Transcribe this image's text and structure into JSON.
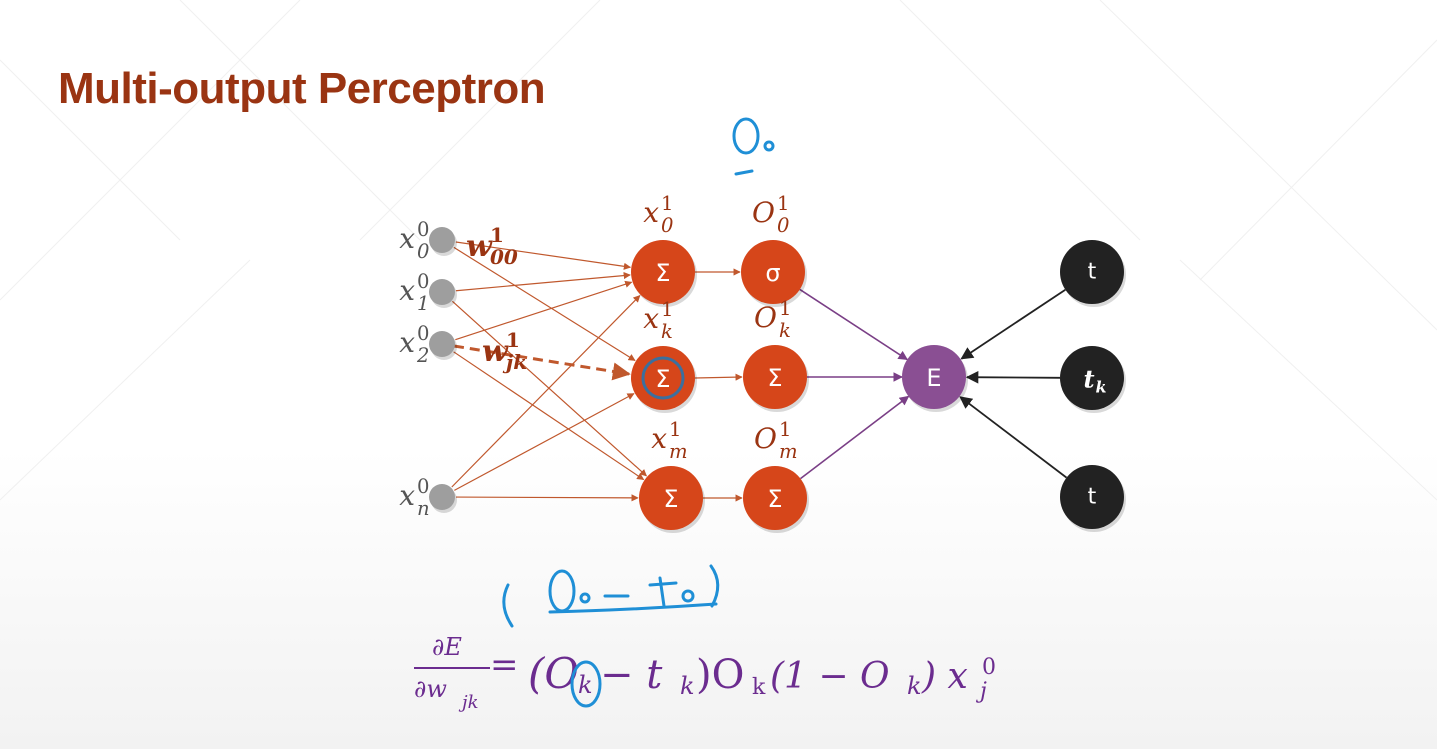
{
  "slide": {
    "title": "Multi-output Perceptron",
    "colors": {
      "title": "#9a3412",
      "node_orange": "#d6461a",
      "node_gray": "#9e9e9e",
      "node_purple": "#8a4f93",
      "node_black": "#222222",
      "edge_orange": "#c0582d",
      "edge_purple": "#7a3f86",
      "ink_blue": "#1f8fd6",
      "formula_purple": "#6b2c8f",
      "label_gray": "#555555",
      "label_brown": "#9a3412"
    }
  },
  "diagram": {
    "inputs": [
      {
        "base": "x",
        "sup": "0",
        "sub": "0"
      },
      {
        "base": "x",
        "sup": "0",
        "sub": "1"
      },
      {
        "base": "x",
        "sup": "0",
        "sub": "2"
      },
      {
        "base": "x",
        "sup": "0",
        "sub": "n"
      }
    ],
    "sum_nodes": [
      {
        "symbol": "Σ",
        "label": {
          "base": "x",
          "sup": "1",
          "sub": "0"
        }
      },
      {
        "symbol": "Σ",
        "label": {
          "base": "x",
          "sup": "1",
          "sub": "k"
        }
      },
      {
        "symbol": "Σ",
        "label": {
          "base": "x",
          "sup": "1",
          "sub": "m"
        }
      }
    ],
    "act_nodes": [
      {
        "symbol": "σ",
        "label": {
          "base": "O",
          "sup": "1",
          "sub": "0"
        }
      },
      {
        "symbol": "Σ",
        "label": {
          "base": "O",
          "sup": "1",
          "sub": "k"
        }
      },
      {
        "symbol": "Σ",
        "label": {
          "base": "O",
          "sup": "1",
          "sub": "m"
        }
      }
    ],
    "error_node": {
      "symbol": "E"
    },
    "target_nodes": [
      {
        "symbol": "t"
      },
      {
        "symbol": "t",
        "sub": "k"
      },
      {
        "symbol": "t"
      }
    ],
    "weights": [
      {
        "base": "w",
        "sup": "1",
        "sub": "00"
      },
      {
        "base": "w",
        "sup": "1",
        "sub": "jk"
      }
    ]
  },
  "annotations": {
    "top_note": "O₀",
    "mid_note": "( O₀ − t₀ )"
  },
  "formula": {
    "lhs_num": "∂E",
    "lhs_den": "∂w",
    "lhs_den_sub": "jk",
    "equals": "=",
    "open": "(O",
    "k1": "k",
    "minus_t": " − t",
    "k2": "k",
    "close": ")O",
    "k3": "k",
    "mid": " (1 − O",
    "k4": "k",
    "end": ") x",
    "x_sub": "j",
    "x_sup": "0"
  }
}
